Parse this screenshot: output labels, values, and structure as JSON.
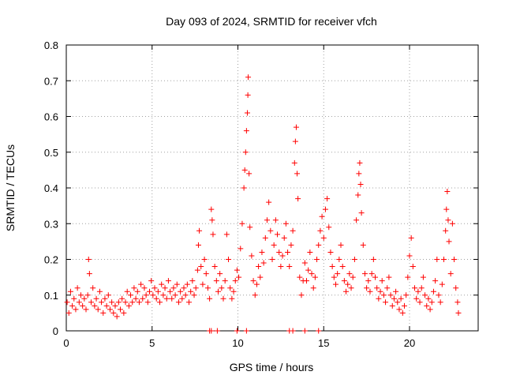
{
  "chart_data": {
    "type": "scatter",
    "title": "Day 093 of 2024, SRMTID for receiver vfch",
    "xlabel": "GPS time / hours",
    "ylabel": "SRMTID / TECUs",
    "xlim": [
      0,
      24
    ],
    "ylim": [
      0,
      0.8
    ],
    "xticks": [
      0,
      5,
      10,
      15,
      20
    ],
    "xtick_labels": [
      "0",
      "5",
      "10",
      "15",
      "20"
    ],
    "yticks": [
      0,
      0.1,
      0.2,
      0.3,
      0.4,
      0.5,
      0.6,
      0.7,
      0.8
    ],
    "ytick_labels": [
      "0",
      "0.1",
      "0.2",
      "0.3",
      "0.4",
      "0.5",
      "0.6",
      "0.7",
      "0.8"
    ],
    "grid": true,
    "marker": "plus",
    "color": "#ff0000",
    "series": [
      {
        "name": "SRMTID",
        "points": [
          [
            0.05,
            0.08
          ],
          [
            0.15,
            0.05
          ],
          [
            0.25,
            0.11
          ],
          [
            0.35,
            0.07
          ],
          [
            0.45,
            0.09
          ],
          [
            0.55,
            0.06
          ],
          [
            0.65,
            0.12
          ],
          [
            0.75,
            0.08
          ],
          [
            0.85,
            0.1
          ],
          [
            0.95,
            0.07
          ],
          [
            1.05,
            0.09
          ],
          [
            1.15,
            0.06
          ],
          [
            1.25,
            0.1
          ],
          [
            1.3,
            0.2
          ],
          [
            1.35,
            0.16
          ],
          [
            1.45,
            0.08
          ],
          [
            1.55,
            0.12
          ],
          [
            1.65,
            0.07
          ],
          [
            1.75,
            0.09
          ],
          [
            1.85,
            0.06
          ],
          [
            1.95,
            0.11
          ],
          [
            2.05,
            0.08
          ],
          [
            2.15,
            0.05
          ],
          [
            2.25,
            0.09
          ],
          [
            2.35,
            0.07
          ],
          [
            2.45,
            0.1
          ],
          [
            2.55,
            0.06
          ],
          [
            2.65,
            0.08
          ],
          [
            2.75,
            0.05
          ],
          [
            2.85,
            0.07
          ],
          [
            2.95,
            0.04
          ],
          [
            3.05,
            0.08
          ],
          [
            3.15,
            0.06
          ],
          [
            3.25,
            0.09
          ],
          [
            3.35,
            0.05
          ],
          [
            3.45,
            0.08
          ],
          [
            3.55,
            0.11
          ],
          [
            3.65,
            0.07
          ],
          [
            3.75,
            0.1
          ],
          [
            3.85,
            0.08
          ],
          [
            3.95,
            0.12
          ],
          [
            4.05,
            0.09
          ],
          [
            4.15,
            0.11
          ],
          [
            4.25,
            0.08
          ],
          [
            4.35,
            0.13
          ],
          [
            4.45,
            0.09
          ],
          [
            4.55,
            0.12
          ],
          [
            4.65,
            0.1
          ],
          [
            4.75,
            0.08
          ],
          [
            4.85,
            0.11
          ],
          [
            4.95,
            0.14
          ],
          [
            5.05,
            0.1
          ],
          [
            5.15,
            0.12
          ],
          [
            5.25,
            0.09
          ],
          [
            5.35,
            0.11
          ],
          [
            5.45,
            0.08
          ],
          [
            5.55,
            0.13
          ],
          [
            5.65,
            0.1
          ],
          [
            5.75,
            0.12
          ],
          [
            5.85,
            0.09
          ],
          [
            5.95,
            0.14
          ],
          [
            6.05,
            0.11
          ],
          [
            6.15,
            0.09
          ],
          [
            6.25,
            0.12
          ],
          [
            6.35,
            0.1
          ],
          [
            6.45,
            0.13
          ],
          [
            6.55,
            0.08
          ],
          [
            6.65,
            0.11
          ],
          [
            6.75,
            0.09
          ],
          [
            6.85,
            0.12
          ],
          [
            6.95,
            0.1
          ],
          [
            7.05,
            0.13
          ],
          [
            7.15,
            0.08
          ],
          [
            7.25,
            0.11
          ],
          [
            7.35,
            0.14
          ],
          [
            7.45,
            0.1
          ],
          [
            7.55,
            0.12
          ],
          [
            7.65,
            0.17
          ],
          [
            7.7,
            0.24
          ],
          [
            7.75,
            0.28
          ],
          [
            7.85,
            0.18
          ],
          [
            7.95,
            0.13
          ],
          [
            8.05,
            0.2
          ],
          [
            8.15,
            0.16
          ],
          [
            8.25,
            0.12
          ],
          [
            8.35,
            0.09
          ],
          [
            8.45,
            0.34
          ],
          [
            8.5,
            0.31
          ],
          [
            8.55,
            0.27
          ],
          [
            8.65,
            0.18
          ],
          [
            8.75,
            0.14
          ],
          [
            8.85,
            0.11
          ],
          [
            8.95,
            0.16
          ],
          [
            9.05,
            0.12
          ],
          [
            9.15,
            0.09
          ],
          [
            9.25,
            0.14
          ],
          [
            9.35,
            0.27
          ],
          [
            9.45,
            0.2
          ],
          [
            9.55,
            0.12
          ],
          [
            9.65,
            0.09
          ],
          [
            9.75,
            0.11
          ],
          [
            9.85,
            0.14
          ],
          [
            9.95,
            0.17
          ],
          [
            10.05,
            0.15
          ],
          [
            10.15,
            0.23
          ],
          [
            10.25,
            0.3
          ],
          [
            10.35,
            0.4
          ],
          [
            10.4,
            0.45
          ],
          [
            10.45,
            0.5
          ],
          [
            10.5,
            0.56
          ],
          [
            10.55,
            0.61
          ],
          [
            10.58,
            0.66
          ],
          [
            10.6,
            0.71
          ],
          [
            10.65,
            0.44
          ],
          [
            10.7,
            0.29
          ],
          [
            10.8,
            0.21
          ],
          [
            10.9,
            0.14
          ],
          [
            11.0,
            0.1
          ],
          [
            11.1,
            0.13
          ],
          [
            11.2,
            0.18
          ],
          [
            11.3,
            0.15
          ],
          [
            11.4,
            0.22
          ],
          [
            11.5,
            0.19
          ],
          [
            11.6,
            0.26
          ],
          [
            11.7,
            0.31
          ],
          [
            11.8,
            0.36
          ],
          [
            11.9,
            0.28
          ],
          [
            12.0,
            0.2
          ],
          [
            12.1,
            0.24
          ],
          [
            12.2,
            0.31
          ],
          [
            12.3,
            0.27
          ],
          [
            12.4,
            0.22
          ],
          [
            12.5,
            0.18
          ],
          [
            12.6,
            0.21
          ],
          [
            12.7,
            0.26
          ],
          [
            12.8,
            0.3
          ],
          [
            12.9,
            0.22
          ],
          [
            13.0,
            0.18
          ],
          [
            13.1,
            0.24
          ],
          [
            13.2,
            0.28
          ],
          [
            13.3,
            0.47
          ],
          [
            13.35,
            0.53
          ],
          [
            13.4,
            0.57
          ],
          [
            13.45,
            0.44
          ],
          [
            13.5,
            0.37
          ],
          [
            13.6,
            0.15
          ],
          [
            13.7,
            0.1
          ],
          [
            13.8,
            0.14
          ],
          [
            13.9,
            0.19
          ],
          [
            14.0,
            0.14
          ],
          [
            14.1,
            0.17
          ],
          [
            14.2,
            0.22
          ],
          [
            14.3,
            0.16
          ],
          [
            14.4,
            0.12
          ],
          [
            14.5,
            0.15
          ],
          [
            14.6,
            0.2
          ],
          [
            14.7,
            0.24
          ],
          [
            14.8,
            0.28
          ],
          [
            14.9,
            0.32
          ],
          [
            15.0,
            0.26
          ],
          [
            15.1,
            0.34
          ],
          [
            15.2,
            0.37
          ],
          [
            15.3,
            0.29
          ],
          [
            15.4,
            0.22
          ],
          [
            15.5,
            0.18
          ],
          [
            15.6,
            0.15
          ],
          [
            15.7,
            0.13
          ],
          [
            15.8,
            0.16
          ],
          [
            15.9,
            0.2
          ],
          [
            16.0,
            0.24
          ],
          [
            16.1,
            0.18
          ],
          [
            16.2,
            0.14
          ],
          [
            16.3,
            0.11
          ],
          [
            16.4,
            0.13
          ],
          [
            16.5,
            0.16
          ],
          [
            16.6,
            0.12
          ],
          [
            16.7,
            0.15
          ],
          [
            16.8,
            0.2
          ],
          [
            16.9,
            0.31
          ],
          [
            17.0,
            0.38
          ],
          [
            17.05,
            0.44
          ],
          [
            17.1,
            0.47
          ],
          [
            17.15,
            0.41
          ],
          [
            17.2,
            0.33
          ],
          [
            17.3,
            0.24
          ],
          [
            17.4,
            0.16
          ],
          [
            17.5,
            0.12
          ],
          [
            17.6,
            0.14
          ],
          [
            17.7,
            0.11
          ],
          [
            17.8,
            0.16
          ],
          [
            17.9,
            0.2
          ],
          [
            18.0,
            0.15
          ],
          [
            18.1,
            0.12
          ],
          [
            18.2,
            0.09
          ],
          [
            18.3,
            0.11
          ],
          [
            18.4,
            0.14
          ],
          [
            18.5,
            0.1
          ],
          [
            18.6,
            0.08
          ],
          [
            18.7,
            0.12
          ],
          [
            18.8,
            0.15
          ],
          [
            18.9,
            0.1
          ],
          [
            19.0,
            0.07
          ],
          [
            19.1,
            0.09
          ],
          [
            19.2,
            0.11
          ],
          [
            19.3,
            0.08
          ],
          [
            19.4,
            0.06
          ],
          [
            19.5,
            0.09
          ],
          [
            19.6,
            0.05
          ],
          [
            19.7,
            0.07
          ],
          [
            19.8,
            0.1
          ],
          [
            19.9,
            0.15
          ],
          [
            20.0,
            0.21
          ],
          [
            20.1,
            0.26
          ],
          [
            20.2,
            0.18
          ],
          [
            20.3,
            0.12
          ],
          [
            20.4,
            0.09
          ],
          [
            20.5,
            0.11
          ],
          [
            20.6,
            0.08
          ],
          [
            20.7,
            0.12
          ],
          [
            20.8,
            0.15
          ],
          [
            20.9,
            0.1
          ],
          [
            21.0,
            0.07
          ],
          [
            21.1,
            0.09
          ],
          [
            21.2,
            0.06
          ],
          [
            21.3,
            0.08
          ],
          [
            21.4,
            0.11
          ],
          [
            21.5,
            0.14
          ],
          [
            21.6,
            0.2
          ],
          [
            21.7,
            0.1
          ],
          [
            21.8,
            0.08
          ],
          [
            21.9,
            0.13
          ],
          [
            22.0,
            0.2
          ],
          [
            22.1,
            0.28
          ],
          [
            22.15,
            0.34
          ],
          [
            22.2,
            0.39
          ],
          [
            22.25,
            0.31
          ],
          [
            22.3,
            0.25
          ],
          [
            22.4,
            0.16
          ],
          [
            22.5,
            0.3
          ],
          [
            22.6,
            0.2
          ],
          [
            22.7,
            0.12
          ],
          [
            22.8,
            0.08
          ],
          [
            22.85,
            0.05
          ]
        ],
        "zero_cluster_hours": [
          8.35,
          8.45,
          8.8,
          9.95,
          10.5,
          13.0,
          13.2,
          13.9,
          14.7
        ]
      }
    ]
  }
}
